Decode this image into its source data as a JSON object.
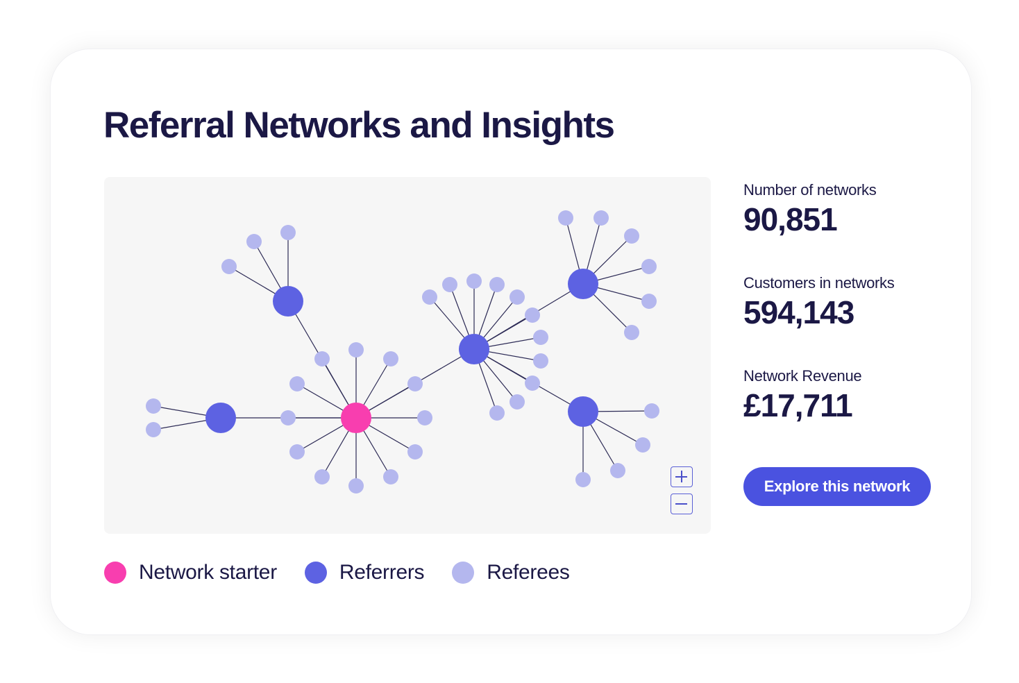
{
  "title": "Referral Networks and Insights",
  "colors": {
    "starter": "#f83eaf",
    "referrer": "#5d62e2",
    "referee": "#b4b7ee",
    "edge": "#2c2a55",
    "text": "#1b1845",
    "button": "#4a52e0"
  },
  "legend": [
    {
      "label": "Network starter",
      "role": "starter"
    },
    {
      "label": "Referrers",
      "role": "referrer"
    },
    {
      "label": "Referees",
      "role": "referee"
    }
  ],
  "stats": [
    {
      "label": "Number of networks",
      "value": "90,851"
    },
    {
      "label": "Customers in networks",
      "value": "594,143"
    },
    {
      "label": "Network Revenue",
      "value": "£17,711"
    }
  ],
  "explore_button": {
    "label": "Explore this network"
  },
  "zoom_controls": {
    "zoom_in_icon": "plus-icon",
    "zoom_out_icon": "minus-icon"
  }
}
